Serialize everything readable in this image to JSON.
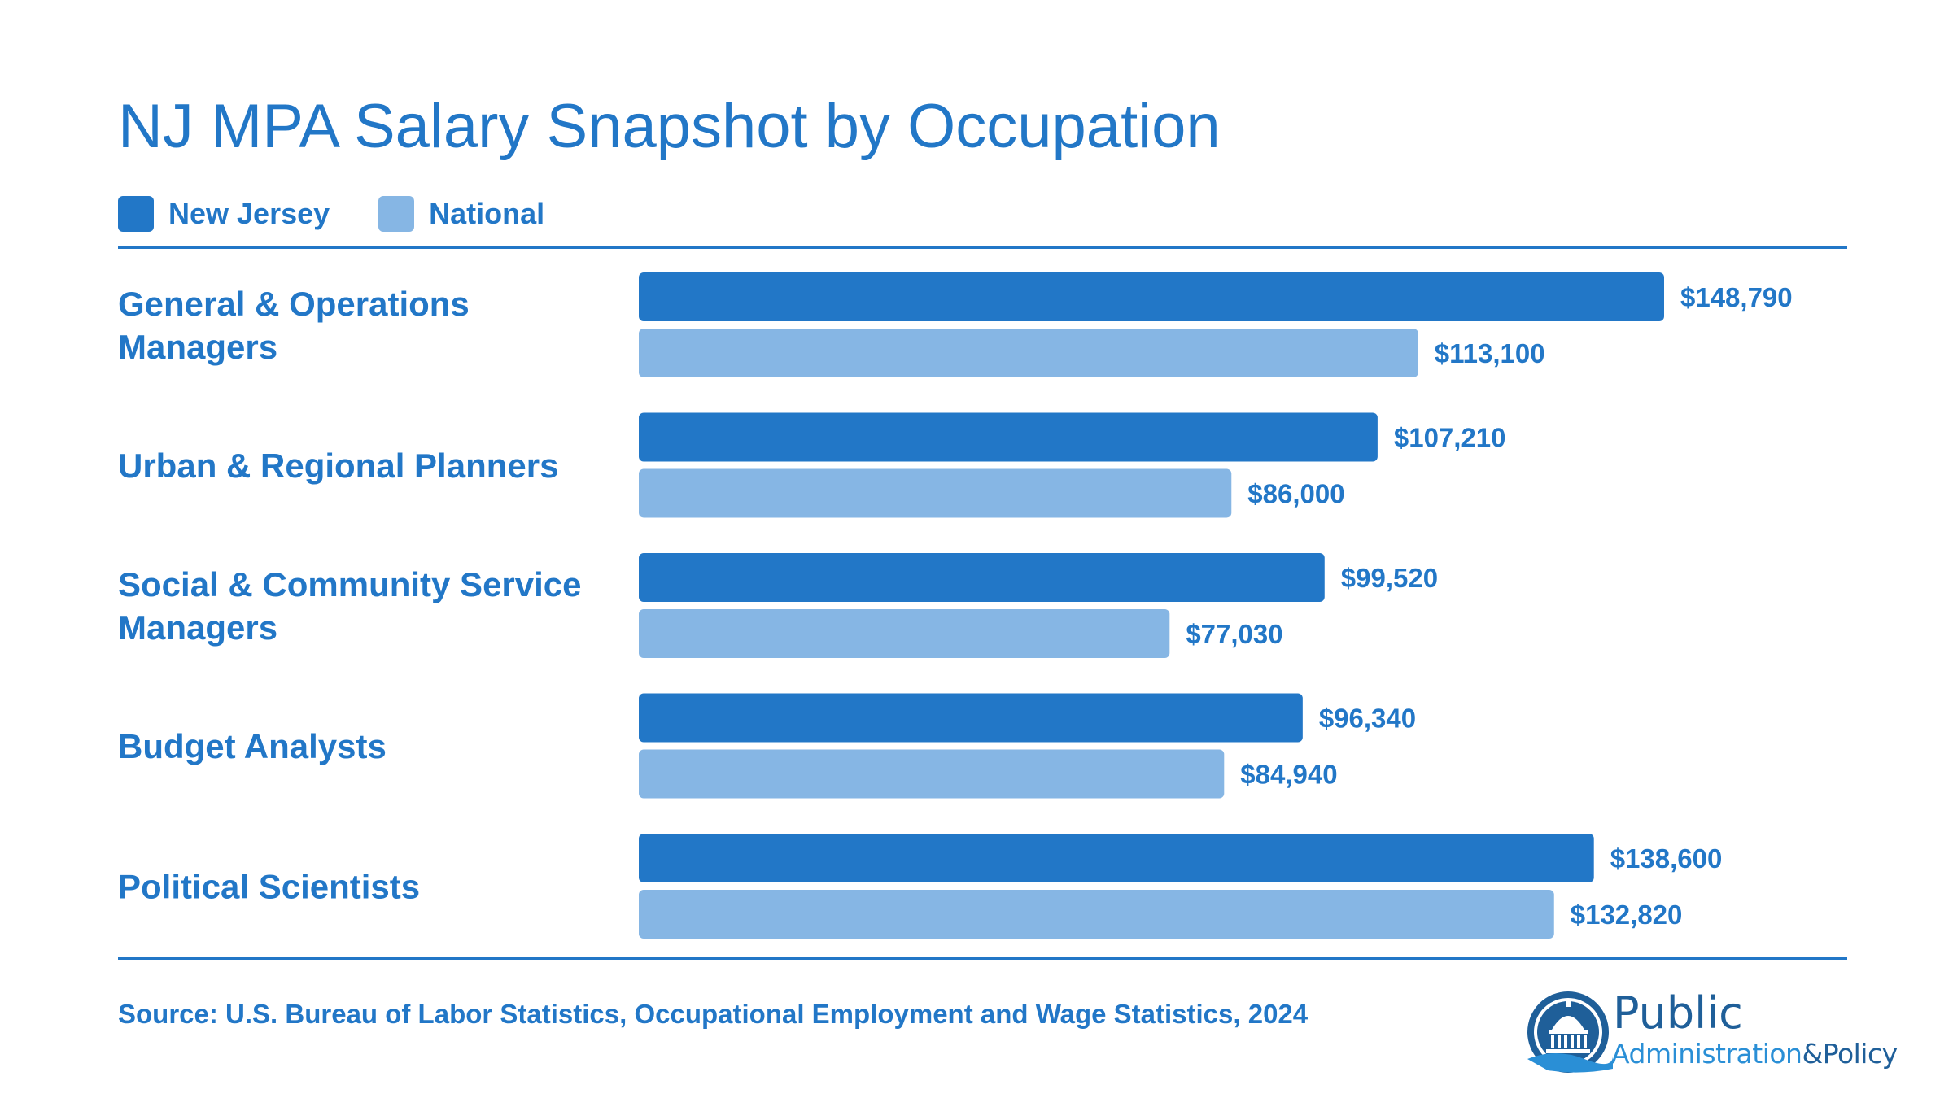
{
  "title": "NJ MPA Salary Snapshot by Occupation",
  "legend": [
    {
      "label": "New Jersey",
      "color": "#2277c7"
    },
    {
      "label": "National",
      "color": "#86b6e4"
    }
  ],
  "source": "Source: U.S. Bureau of Labor Statistics, Occupational Employment and Wage Statistics, 2024",
  "logo": {
    "word1": "Public",
    "word2": "Administration",
    "amp": "&",
    "word3": "Policy"
  },
  "chart_data": {
    "type": "bar",
    "orientation": "horizontal",
    "categories": [
      [
        "General & Operations",
        "Managers"
      ],
      [
        "Urban & Regional Planners"
      ],
      [
        "Social & Community Service",
        "Managers"
      ],
      [
        "Budget Analysts"
      ],
      [
        "Political Scientists"
      ]
    ],
    "series": [
      {
        "name": "New Jersey",
        "color": "#2277c7",
        "values": [
          148790,
          107210,
          99520,
          96340,
          138600
        ],
        "labels": [
          "$148,790",
          "$107,210",
          "$99,520",
          "$96,340",
          "$138,600"
        ]
      },
      {
        "name": "National",
        "color": "#86b6e4",
        "values": [
          113100,
          86000,
          77030,
          84940,
          132820
        ],
        "labels": [
          "$113,100",
          "$86,000",
          "$77,030",
          "$84,940",
          "$132,820"
        ]
      }
    ],
    "xlim": [
      0,
      160000
    ],
    "grid": false,
    "legend_position": "top-left"
  }
}
